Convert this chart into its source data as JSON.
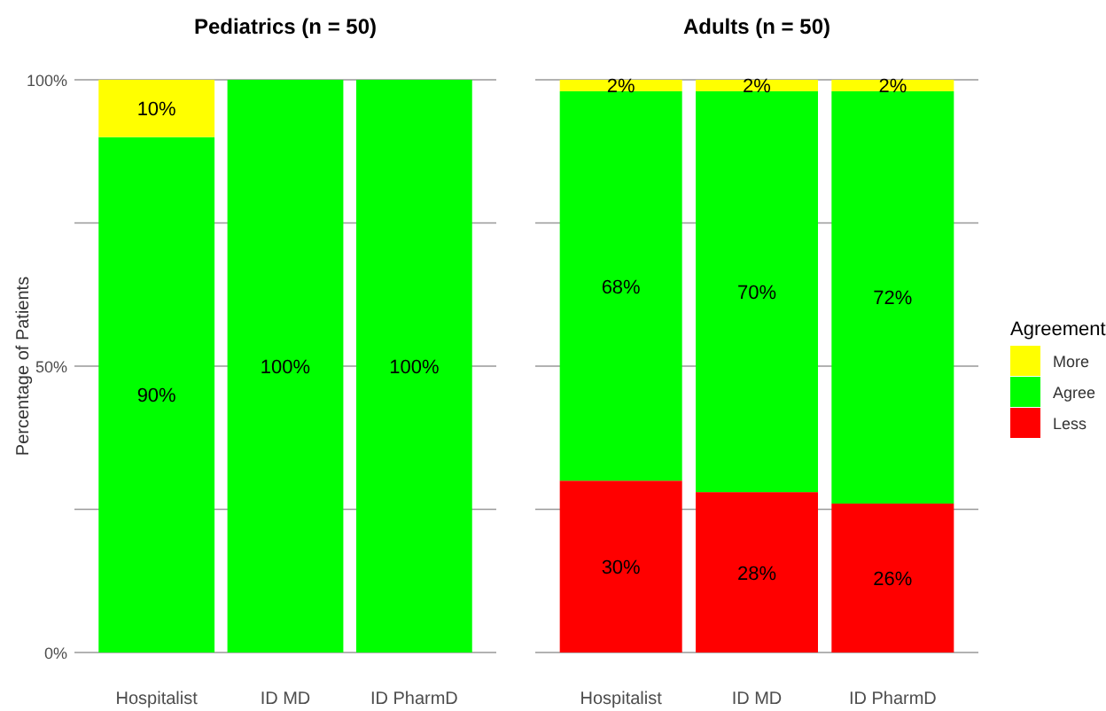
{
  "chart_data": [
    {
      "type": "bar",
      "title": "Pediatrics (n = 50)",
      "ylabel": "Percentage of Patients",
      "categories": [
        "Hospitalist",
        "ID MD",
        "ID PharmD"
      ],
      "stacked": true,
      "ylim": [
        0,
        100
      ],
      "yticks": [
        {
          "value": 0,
          "label": "0%"
        },
        {
          "value": 25,
          "label": null
        },
        {
          "value": 50,
          "label": "50%"
        },
        {
          "value": 75,
          "label": null
        },
        {
          "value": 100,
          "label": "100%"
        }
      ],
      "grid": "y",
      "legend": false,
      "series": [
        {
          "color": "#ff0000",
          "values": [
            0,
            0,
            0
          ],
          "value_labels": [
            null,
            null,
            null
          ]
        },
        {
          "color": "#00ff00",
          "values": [
            90,
            100,
            100
          ],
          "value_labels": [
            "90%",
            "100%",
            "100%"
          ]
        },
        {
          "color": "#ffff00",
          "values": [
            10,
            0,
            0
          ],
          "value_labels": [
            "10%",
            null,
            null
          ]
        }
      ]
    },
    {
      "type": "bar",
      "title": "Adults (n = 50)",
      "categories": [
        "Hospitalist",
        "ID MD",
        "ID PharmD"
      ],
      "stacked": true,
      "ylim": [
        0,
        100
      ],
      "yticks": [
        0,
        25,
        50,
        75,
        100
      ],
      "grid": "y",
      "tick_labels": "x",
      "legend": "right",
      "legend_title": "Agreement",
      "series": [
        {
          "name": "Less",
          "color": "#ff0000",
          "values": [
            30,
            28,
            26
          ],
          "value_labels": [
            "30%",
            "28%",
            "26%"
          ]
        },
        {
          "name": "Agree",
          "color": "#00ff00",
          "values": [
            68,
            70,
            72
          ],
          "value_labels": [
            "68%",
            "70%",
            "72%"
          ]
        },
        {
          "name": "More",
          "color": "#ffff00",
          "values": [
            2,
            2,
            2
          ],
          "value_labels": [
            "2%",
            "2%",
            "2%"
          ]
        }
      ]
    }
  ]
}
